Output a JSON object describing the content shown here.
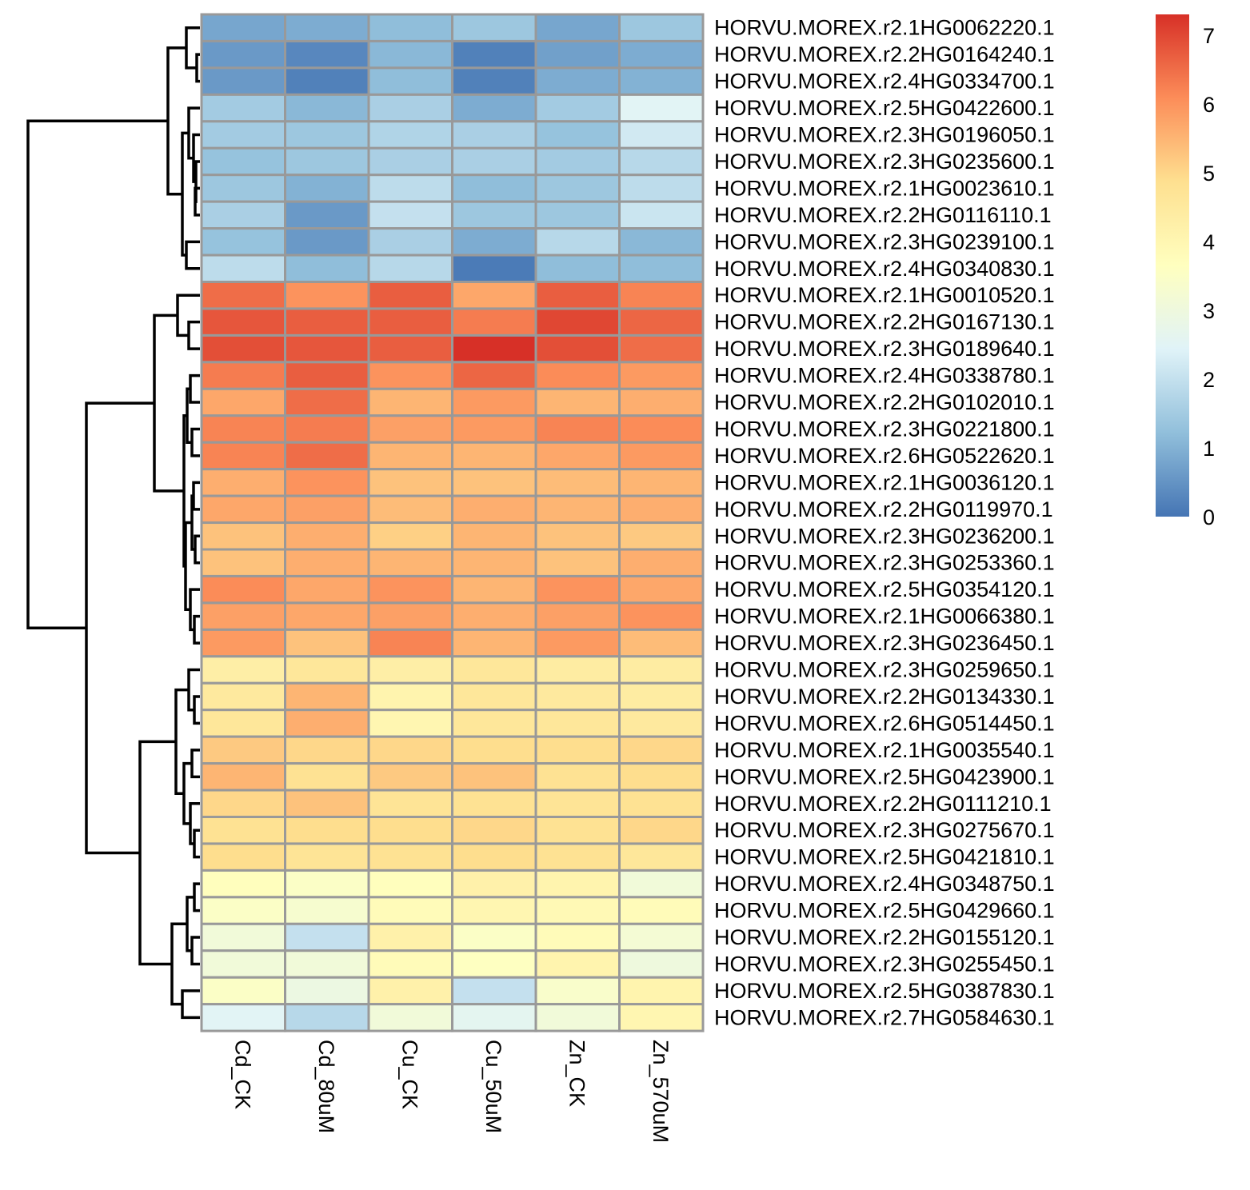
{
  "chart_data": {
    "type": "heatmap",
    "columns": [
      "Cd_CK",
      "Cd_80uM",
      "Cu_CK",
      "Cu_50uM",
      "Zn_CK",
      "Zn_570uM"
    ],
    "rows": [
      "HORVU.MOREX.r2.1HG0062220.1",
      "HORVU.MOREX.r2.2HG0164240.1",
      "HORVU.MOREX.r2.4HG0334700.1",
      "HORVU.MOREX.r2.5HG0422600.1",
      "HORVU.MOREX.r2.3HG0196050.1",
      "HORVU.MOREX.r2.3HG0235600.1",
      "HORVU.MOREX.r2.1HG0023610.1",
      "HORVU.MOREX.r2.2HG0116110.1",
      "HORVU.MOREX.r2.3HG0239100.1",
      "HORVU.MOREX.r2.4HG0340830.1",
      "HORVU.MOREX.r2.1HG0010520.1",
      "HORVU.MOREX.r2.2HG0167130.1",
      "HORVU.MOREX.r2.3HG0189640.1",
      "HORVU.MOREX.r2.4HG0338780.1",
      "HORVU.MOREX.r2.2HG0102010.1",
      "HORVU.MOREX.r2.3HG0221800.1",
      "HORVU.MOREX.r2.6HG0522620.1",
      "HORVU.MOREX.r2.1HG0036120.1",
      "HORVU.MOREX.r2.2HG0119970.1",
      "HORVU.MOREX.r2.3HG0236200.1",
      "HORVU.MOREX.r2.3HG0253360.1",
      "HORVU.MOREX.r2.5HG0354120.1",
      "HORVU.MOREX.r2.1HG0066380.1",
      "HORVU.MOREX.r2.3HG0236450.1",
      "HORVU.MOREX.r2.3HG0259650.1",
      "HORVU.MOREX.r2.2HG0134330.1",
      "HORVU.MOREX.r2.6HG0514450.1",
      "HORVU.MOREX.r2.1HG0035540.1",
      "HORVU.MOREX.r2.5HG0423900.1",
      "HORVU.MOREX.r2.2HG0111210.1",
      "HORVU.MOREX.r2.3HG0275670.1",
      "HORVU.MOREX.r2.5HG0421810.1",
      "HORVU.MOREX.r2.4HG0348750.1",
      "HORVU.MOREX.r2.5HG0429660.1",
      "HORVU.MOREX.r2.2HG0155120.1",
      "HORVU.MOREX.r2.3HG0255450.1",
      "HORVU.MOREX.r2.5HG0387830.1",
      "HORVU.MOREX.r2.7HG0584630.1"
    ],
    "values": [
      [
        0.8,
        0.9,
        1.2,
        1.4,
        0.8,
        1.4
      ],
      [
        0.6,
        0.3,
        1.1,
        0.2,
        0.7,
        0.9
      ],
      [
        0.6,
        0.2,
        1.2,
        0.2,
        0.9,
        1.0
      ],
      [
        1.5,
        1.1,
        1.6,
        0.9,
        1.5,
        2.5
      ],
      [
        1.5,
        1.4,
        1.7,
        1.6,
        1.3,
        2.2
      ],
      [
        1.3,
        1.4,
        1.6,
        1.6,
        1.5,
        1.8
      ],
      [
        1.4,
        1.0,
        1.9,
        1.2,
        1.4,
        1.9
      ],
      [
        1.6,
        0.6,
        2.0,
        1.4,
        1.4,
        2.1
      ],
      [
        1.3,
        0.6,
        1.6,
        0.9,
        1.8,
        1.1
      ],
      [
        1.9,
        1.2,
        1.8,
        0.1,
        1.2,
        1.2
      ],
      [
        6.5,
        6.0,
        6.7,
        5.7,
        6.7,
        6.2
      ],
      [
        6.8,
        6.7,
        6.7,
        6.3,
        7.0,
        6.6
      ],
      [
        6.9,
        6.8,
        6.7,
        7.3,
        6.9,
        6.5
      ],
      [
        6.3,
        6.7,
        6.0,
        6.6,
        6.1,
        5.9
      ],
      [
        5.7,
        6.5,
        5.5,
        5.9,
        5.5,
        5.6
      ],
      [
        6.2,
        6.3,
        5.8,
        5.9,
        6.2,
        6.1
      ],
      [
        6.2,
        6.5,
        5.5,
        5.5,
        5.7,
        5.9
      ],
      [
        5.6,
        6.0,
        5.3,
        5.3,
        5.4,
        5.5
      ],
      [
        5.7,
        5.8,
        5.4,
        5.6,
        5.5,
        5.6
      ],
      [
        5.3,
        5.6,
        5.1,
        5.5,
        5.3,
        5.2
      ],
      [
        5.3,
        5.6,
        5.5,
        5.5,
        5.3,
        5.6
      ],
      [
        6.1,
        5.7,
        6.0,
        5.5,
        6.0,
        5.7
      ],
      [
        5.8,
        5.7,
        5.8,
        5.6,
        5.8,
        6.0
      ],
      [
        5.9,
        5.3,
        6.2,
        5.5,
        5.9,
        5.4
      ],
      [
        4.3,
        4.6,
        4.3,
        4.6,
        4.4,
        4.4
      ],
      [
        4.5,
        5.5,
        4.1,
        4.6,
        4.5,
        4.4
      ],
      [
        4.6,
        5.6,
        4.0,
        4.6,
        4.6,
        4.5
      ],
      [
        5.2,
        5.0,
        5.0,
        4.9,
        4.9,
        5.0
      ],
      [
        5.5,
        4.8,
        5.2,
        5.3,
        4.8,
        4.9
      ],
      [
        5.0,
        5.3,
        4.7,
        4.8,
        4.7,
        4.8
      ],
      [
        4.8,
        4.9,
        4.9,
        5.0,
        4.8,
        5.0
      ],
      [
        4.9,
        4.7,
        4.8,
        4.9,
        4.8,
        4.6
      ],
      [
        3.7,
        3.5,
        3.7,
        4.2,
        4.1,
        3.1
      ],
      [
        3.5,
        3.3,
        3.8,
        4.0,
        3.9,
        3.8
      ],
      [
        3.1,
        2.0,
        4.2,
        3.5,
        3.8,
        3.2
      ],
      [
        3.1,
        3.1,
        3.8,
        3.6,
        4.1,
        3.0
      ],
      [
        3.5,
        2.9,
        4.2,
        2.0,
        3.4,
        4.1
      ],
      [
        2.5,
        1.8,
        3.1,
        2.6,
        3.1,
        4.0
      ]
    ],
    "color_scale": {
      "min": 0,
      "max": 7.3,
      "stops": [
        "#4575b4",
        "#91bfdb",
        "#e0f3f8",
        "#ffffbf",
        "#fee090",
        "#fc8d59",
        "#d73027"
      ],
      "ticks": [
        "0",
        "1",
        "2",
        "3",
        "4",
        "5",
        "6",
        "7"
      ]
    },
    "grid_color": "#999999",
    "dendrogram": "rows",
    "legend_position": "right"
  }
}
